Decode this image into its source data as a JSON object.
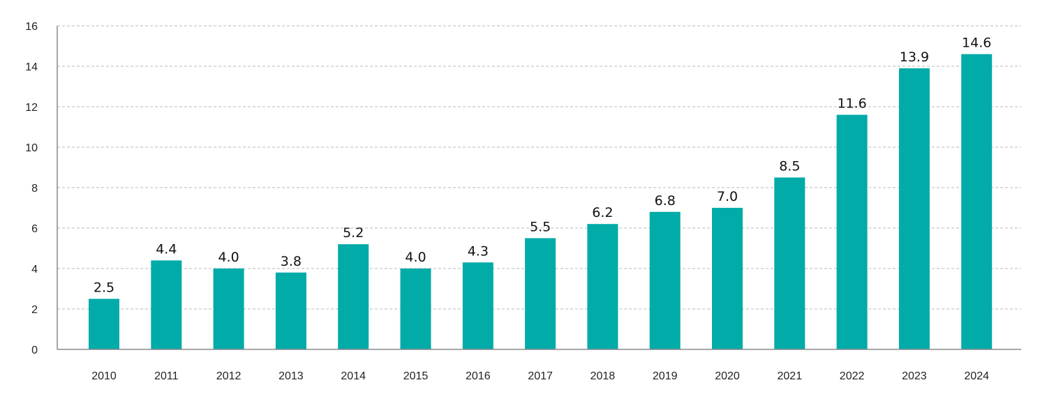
{
  "chart_data": {
    "type": "bar",
    "title": "",
    "xlabel": "",
    "ylabel": "",
    "categories": [
      "2010",
      "2011",
      "2012",
      "2013",
      "2014",
      "2015",
      "2016",
      "2017",
      "2018",
      "2019",
      "2020",
      "2021",
      "2022",
      "2023",
      "2024"
    ],
    "values": [
      2.5,
      4.4,
      4.0,
      3.8,
      5.2,
      4.0,
      4.3,
      5.5,
      6.2,
      6.8,
      7.0,
      8.5,
      11.6,
      13.9,
      14.6
    ],
    "data_labels": [
      "2.5",
      "4.4",
      "4.0",
      "3.8",
      "5.2",
      "4.0",
      "4.3",
      "5.5",
      "6.2",
      "6.8",
      "7.0",
      "8.5",
      "11.6",
      "13.9",
      "14.6"
    ],
    "ylim": [
      0,
      16
    ],
    "yticks": [
      0,
      2,
      4,
      6,
      8,
      10,
      12,
      14,
      16
    ],
    "grid": true,
    "grid_style": "dashed-horizontal",
    "legend": null,
    "bar_color": "#00ABA8"
  }
}
